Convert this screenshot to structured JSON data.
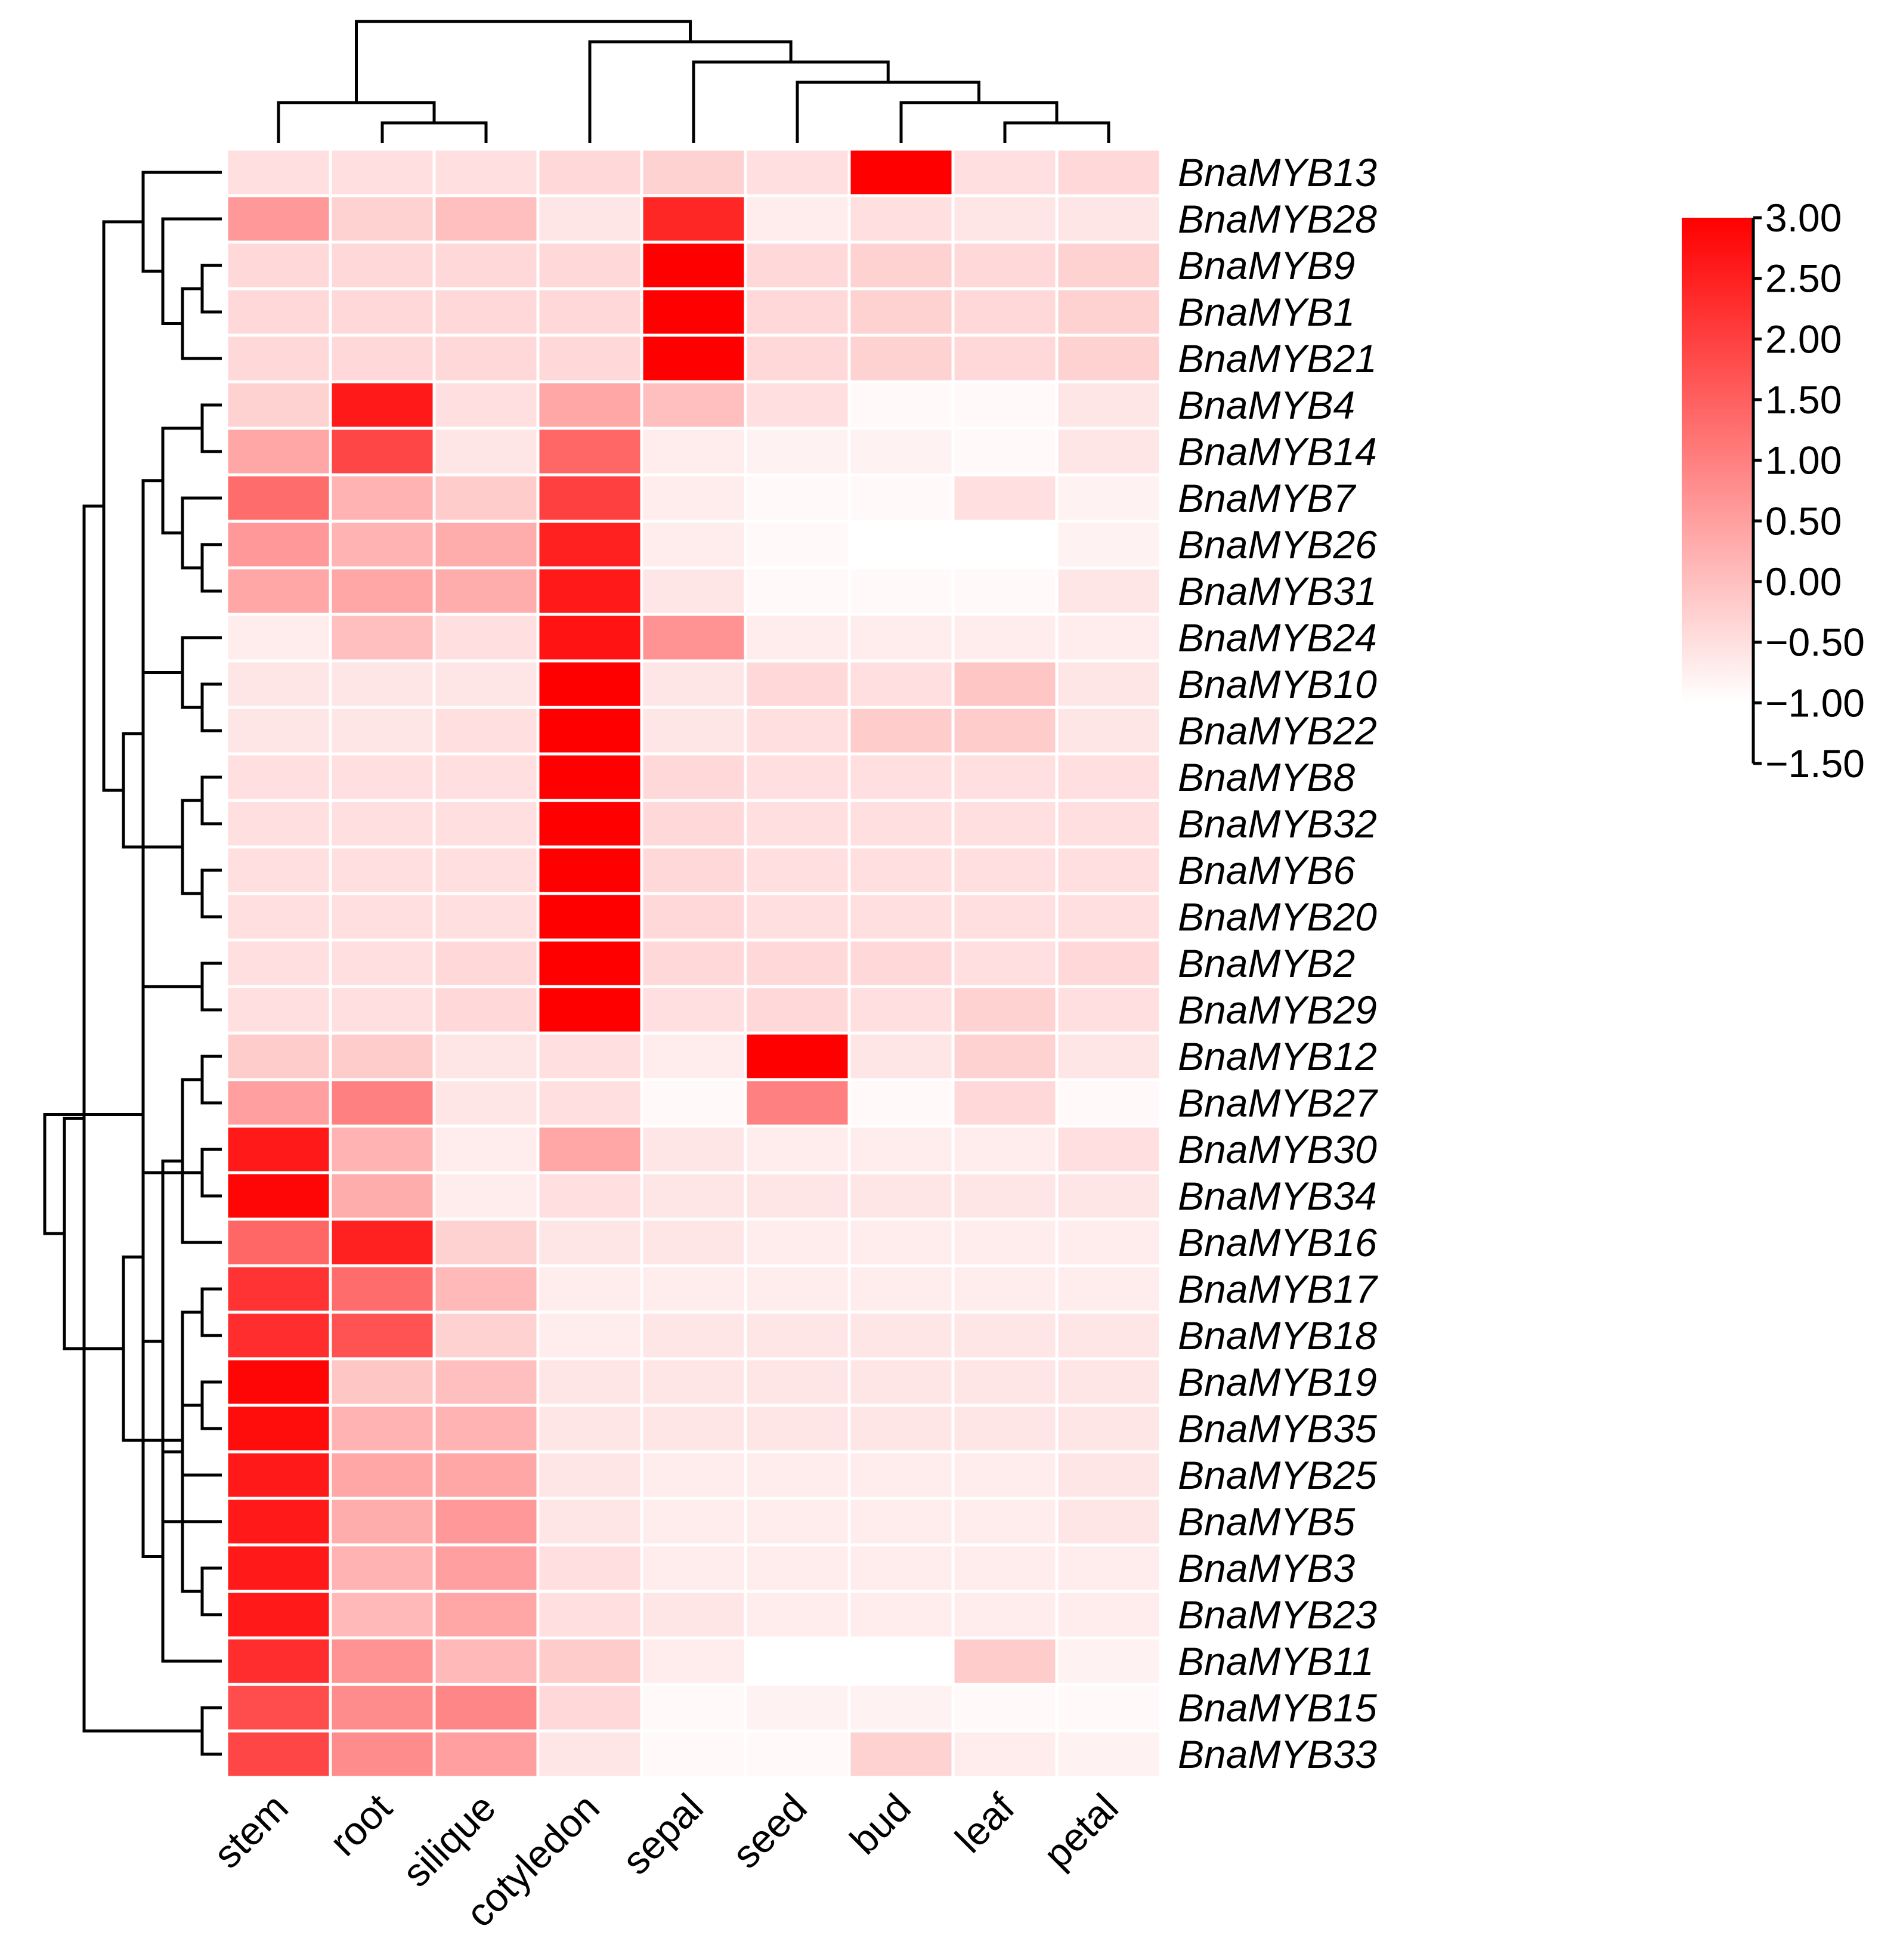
{
  "chart_data": {
    "type": "heatmap",
    "title": "",
    "columns": [
      "stem",
      "root",
      "silique",
      "cotyledon",
      "sepal",
      "seed",
      "bud",
      "leaf",
      "petal"
    ],
    "rows": [
      "BnaMYB13",
      "BnaMYB28",
      "BnaMYB9",
      "BnaMYB1",
      "BnaMYB21",
      "BnaMYB4",
      "BnaMYB14",
      "BnaMYB7",
      "BnaMYB26",
      "BnaMYB31",
      "BnaMYB24",
      "BnaMYB10",
      "BnaMYB22",
      "BnaMYB8",
      "BnaMYB32",
      "BnaMYB6",
      "BnaMYB20",
      "BnaMYB2",
      "BnaMYB29",
      "BnaMYB12",
      "BnaMYB27",
      "BnaMYB30",
      "BnaMYB34",
      "BnaMYB16",
      "BnaMYB17",
      "BnaMYB18",
      "BnaMYB19",
      "BnaMYB35",
      "BnaMYB25",
      "BnaMYB5",
      "BnaMYB3",
      "BnaMYB23",
      "BnaMYB11",
      "BnaMYB15",
      "BnaMYB33"
    ],
    "values": [
      [
        -0.5,
        -0.5,
        -0.5,
        -0.4,
        -0.3,
        -0.5,
        3.0,
        -0.5,
        -0.4
      ],
      [
        0.6,
        -0.3,
        0.0,
        -0.6,
        2.4,
        -0.7,
        -0.5,
        -0.6,
        -0.6
      ],
      [
        -0.4,
        -0.4,
        -0.4,
        -0.4,
        3.0,
        -0.4,
        -0.3,
        -0.4,
        -0.3
      ],
      [
        -0.4,
        -0.4,
        -0.4,
        -0.4,
        3.0,
        -0.4,
        -0.3,
        -0.4,
        -0.3
      ],
      [
        -0.4,
        -0.4,
        -0.4,
        -0.4,
        3.0,
        -0.4,
        -0.3,
        -0.4,
        -0.3
      ],
      [
        -0.3,
        2.6,
        -0.5,
        0.4,
        0.0,
        -0.5,
        -0.9,
        -0.9,
        -0.6
      ],
      [
        0.4,
        1.9,
        -0.6,
        1.4,
        -0.7,
        -0.8,
        -0.8,
        -0.9,
        -0.6
      ],
      [
        1.3,
        0.2,
        -0.2,
        2.0,
        -0.7,
        -0.9,
        -0.9,
        -0.5,
        -0.8
      ],
      [
        0.6,
        0.2,
        0.3,
        2.5,
        -0.7,
        -0.9,
        -1.0,
        -1.0,
        -0.8
      ],
      [
        0.4,
        0.4,
        0.3,
        2.6,
        -0.6,
        -0.9,
        -0.9,
        -0.9,
        -0.6
      ],
      [
        -0.7,
        0.0,
        -0.5,
        2.7,
        0.7,
        -0.7,
        -0.7,
        -0.7,
        -0.7
      ],
      [
        -0.6,
        -0.6,
        -0.6,
        3.0,
        -0.6,
        -0.4,
        -0.5,
        -0.1,
        -0.6
      ],
      [
        -0.6,
        -0.6,
        -0.5,
        3.0,
        -0.6,
        -0.5,
        -0.2,
        -0.2,
        -0.6
      ],
      [
        -0.5,
        -0.5,
        -0.5,
        3.0,
        -0.4,
        -0.5,
        -0.5,
        -0.5,
        -0.5
      ],
      [
        -0.5,
        -0.5,
        -0.5,
        3.0,
        -0.4,
        -0.5,
        -0.5,
        -0.5,
        -0.5
      ],
      [
        -0.5,
        -0.5,
        -0.5,
        3.0,
        -0.4,
        -0.5,
        -0.5,
        -0.5,
        -0.5
      ],
      [
        -0.5,
        -0.5,
        -0.5,
        3.0,
        -0.4,
        -0.5,
        -0.5,
        -0.5,
        -0.5
      ],
      [
        -0.5,
        -0.5,
        -0.4,
        3.0,
        -0.4,
        -0.4,
        -0.4,
        -0.5,
        -0.4
      ],
      [
        -0.5,
        -0.5,
        -0.4,
        3.0,
        -0.5,
        -0.4,
        -0.5,
        -0.3,
        -0.5
      ],
      [
        -0.2,
        -0.2,
        -0.6,
        -0.5,
        -0.7,
        3.0,
        -0.6,
        -0.3,
        -0.6
      ],
      [
        0.5,
        1.0,
        -0.6,
        -0.5,
        -0.9,
        1.0,
        -0.9,
        -0.4,
        -0.9
      ],
      [
        2.6,
        0.2,
        -0.7,
        0.4,
        -0.6,
        -0.7,
        -0.7,
        -0.7,
        -0.5
      ],
      [
        2.9,
        0.3,
        -0.7,
        -0.5,
        -0.6,
        -0.6,
        -0.6,
        -0.6,
        -0.6
      ],
      [
        1.4,
        2.5,
        -0.3,
        -0.6,
        -0.6,
        -0.7,
        -0.7,
        -0.7,
        -0.7
      ],
      [
        2.2,
        1.3,
        0.1,
        -0.7,
        -0.7,
        -0.7,
        -0.7,
        -0.7,
        -0.7
      ],
      [
        2.3,
        1.7,
        -0.3,
        -0.7,
        -0.6,
        -0.6,
        -0.6,
        -0.6,
        -0.6
      ],
      [
        2.9,
        -0.1,
        0.0,
        -0.6,
        -0.6,
        -0.6,
        -0.6,
        -0.6,
        -0.6
      ],
      [
        2.8,
        0.2,
        0.2,
        -0.6,
        -0.6,
        -0.6,
        -0.6,
        -0.6,
        -0.6
      ],
      [
        2.6,
        0.4,
        0.4,
        -0.6,
        -0.7,
        -0.7,
        -0.7,
        -0.7,
        -0.6
      ],
      [
        2.6,
        0.3,
        0.6,
        -0.6,
        -0.7,
        -0.7,
        -0.7,
        -0.7,
        -0.6
      ],
      [
        2.6,
        0.2,
        0.5,
        -0.5,
        -0.7,
        -0.7,
        -0.7,
        -0.7,
        -0.7
      ],
      [
        2.6,
        0.1,
        0.4,
        -0.5,
        -0.6,
        -0.7,
        -0.7,
        -0.7,
        -0.7
      ],
      [
        2.3,
        0.7,
        0.1,
        -0.2,
        -0.7,
        -1.1,
        -1.1,
        -0.2,
        -0.8
      ],
      [
        1.8,
        0.8,
        0.9,
        -0.4,
        -0.9,
        -0.8,
        -0.8,
        -0.9,
        -0.9
      ],
      [
        1.9,
        0.8,
        0.5,
        -0.6,
        -0.9,
        -0.9,
        -0.3,
        -0.7,
        -0.8
      ]
    ],
    "colorbar": {
      "min": -1.5,
      "max": 3.0,
      "ticks": [
        "3.00",
        "2.50",
        "2.00",
        "1.50",
        "1.00",
        "0.50",
        "0.00",
        "−0.50",
        "−1.00",
        "−1.50"
      ],
      "low_color": "#ffffff",
      "high_color": "#ff0000"
    },
    "color_clip_min": -1.0,
    "row_dendrogram": [
      [
        2,
        3
      ],
      [
        4,
        35
      ],
      [
        1,
        36
      ],
      [
        0,
        37
      ],
      [
        5,
        6
      ],
      [
        8,
        9
      ],
      [
        7,
        40
      ],
      [
        39,
        41
      ],
      [
        13,
        14
      ],
      [
        15,
        16
      ],
      [
        17,
        18
      ],
      [
        43,
        44
      ],
      [
        42,
        45
      ],
      [
        11,
        12
      ],
      [
        47,
        46
      ],
      [
        10,
        48
      ],
      [
        38,
        49
      ],
      [
        19,
        20
      ],
      [
        21,
        22
      ],
      [
        24,
        25
      ],
      [
        23,
        52
      ],
      [
        26,
        27
      ],
      [
        30,
        31
      ],
      [
        29,
        55
      ],
      [
        28,
        56
      ],
      [
        54,
        57
      ],
      [
        53,
        58
      ],
      [
        33,
        34
      ],
      [
        32,
        60
      ],
      [
        59,
        61
      ],
      [
        51,
        62
      ],
      [
        50,
        63
      ],
      [
        64,
        65
      ],
      [
        66,
        67
      ]
    ],
    "col_dendrogram": [
      [
        7,
        8
      ],
      [
        6,
        9
      ],
      [
        5,
        10
      ],
      [
        4,
        11
      ],
      [
        1,
        2
      ],
      [
        0,
        13
      ],
      [
        3,
        12
      ],
      [
        14,
        15
      ]
    ]
  }
}
